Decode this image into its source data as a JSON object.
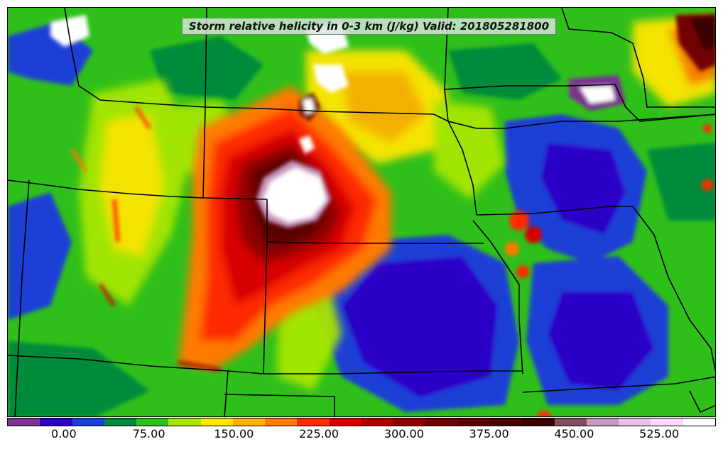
{
  "title": "Storm relative helicity in 0-3 km (J/kg) Valid: 201805281800",
  "colorbar": {
    "colors": [
      "#7b3294",
      "#2a00c8",
      "#1a3fd6",
      "#008a3a",
      "#2fbf1a",
      "#a8e600",
      "#ffe600",
      "#ffb000",
      "#ff7a00",
      "#ff2a00",
      "#d80000",
      "#b00000",
      "#8f0000",
      "#730000",
      "#5a0000",
      "#4a0000",
      "#3a0000",
      "#805060",
      "#c898c0",
      "#e8c0e8",
      "#ffd8ff",
      "#ffffff"
    ],
    "tick_labels": [
      "0.00",
      "75.00",
      "150.00",
      "225.00",
      "300.00",
      "375.00",
      "450.00",
      "525.00"
    ],
    "tick_values": [
      0,
      75,
      150,
      225,
      300,
      375,
      450,
      525
    ],
    "range": [
      -50,
      575
    ]
  },
  "map": {
    "background_level_color": "#2fbf1a",
    "description_levels": {
      "low": "#2a00c8",
      "mid": "#ffe600",
      "high": "#730000",
      "extreme": "#ffffff"
    }
  }
}
